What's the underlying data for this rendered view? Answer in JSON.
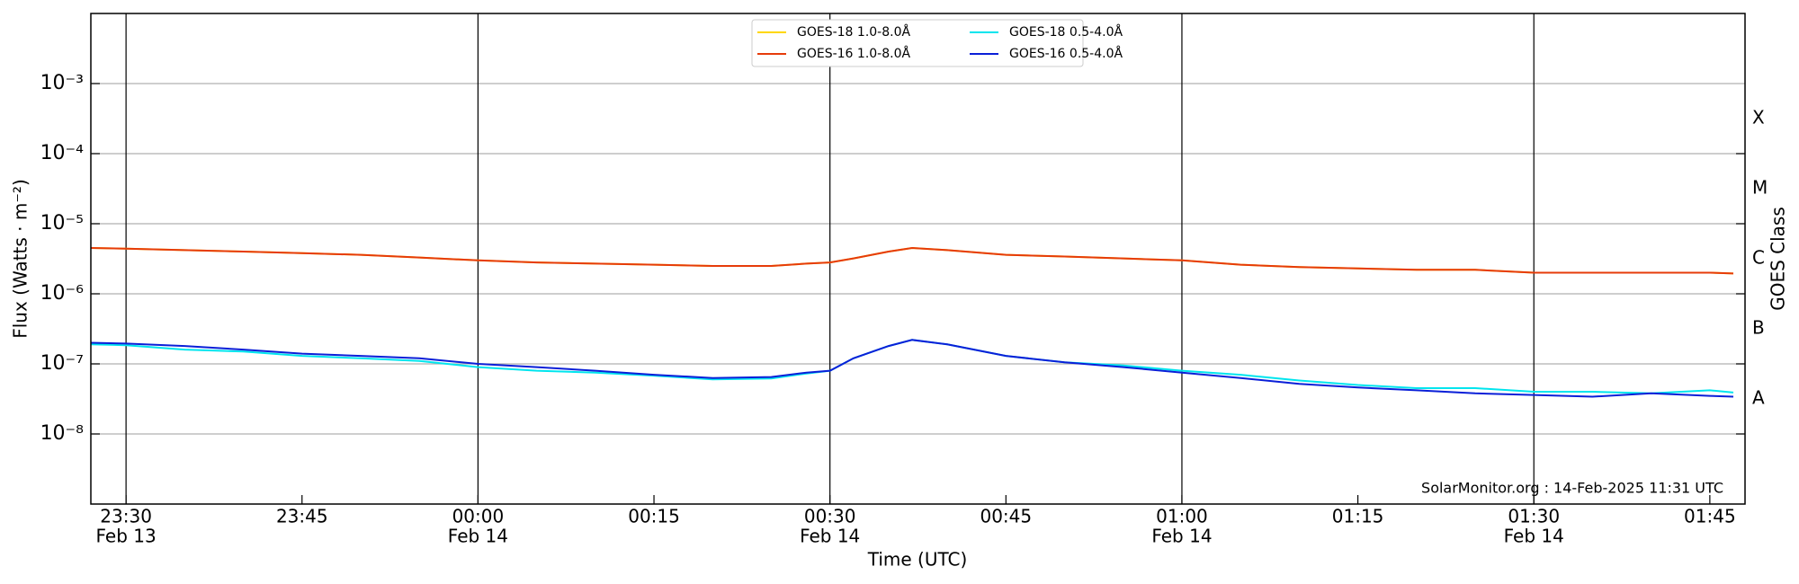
{
  "chart_data": {
    "type": "line",
    "y_label": "Flux (Watts · m⁻²)",
    "y2_label": "GOES Class",
    "x_label": "Time (UTC)",
    "annotation": "SolarMonitor.org : 14-Feb-2025 11:31 UTC",
    "log_y": true,
    "grid": true,
    "legend": "top-center",
    "x": [
      "Feb 13 23:27",
      "Feb 13 23:30",
      "Feb 13 23:35",
      "Feb 13 23:40",
      "Feb 13 23:45",
      "Feb 13 23:50",
      "Feb 13 23:55",
      "Feb 14 00:00",
      "Feb 14 00:05",
      "Feb 14 00:10",
      "Feb 14 00:15",
      "Feb 14 00:20",
      "Feb 14 00:25",
      "Feb 14 00:28",
      "Feb 14 00:30",
      "Feb 14 00:32",
      "Feb 14 00:35",
      "Feb 14 00:37",
      "Feb 14 00:40",
      "Feb 14 00:45",
      "Feb 14 00:50",
      "Feb 14 00:55",
      "Feb 14 01:00",
      "Feb 14 01:05",
      "Feb 14 01:10",
      "Feb 14 01:15",
      "Feb 14 01:20",
      "Feb 14 01:25",
      "Feb 14 01:30",
      "Feb 14 01:35",
      "Feb 14 01:40",
      "Feb 14 01:45",
      "Feb 14 01:47"
    ],
    "xlim": [
      "Feb 13 23:27",
      "Feb 14 01:48"
    ],
    "xticks": [
      {
        "value": "Feb 13 23:30",
        "label": "23:30",
        "date": "Feb 13"
      },
      {
        "value": "Feb 13 23:45",
        "label": "23:45"
      },
      {
        "value": "Feb 14 00:00",
        "label": "00:00",
        "date": "Feb 14"
      },
      {
        "value": "Feb 14 00:15",
        "label": "00:15"
      },
      {
        "value": "Feb 14 00:30",
        "label": "00:30",
        "date": "Feb 14"
      },
      {
        "value": "Feb 14 00:45",
        "label": "00:45"
      },
      {
        "value": "Feb 14 01:00",
        "label": "01:00",
        "date": "Feb 14"
      },
      {
        "value": "Feb 14 01:15",
        "label": "01:15"
      },
      {
        "value": "Feb 14 01:30",
        "label": "01:30",
        "date": "Feb 14"
      },
      {
        "value": "Feb 14 01:45",
        "label": "01:45"
      }
    ],
    "ylim": [
      1e-09,
      0.01
    ],
    "yticks": [
      {
        "value": 1e-08,
        "label": "10⁻⁸"
      },
      {
        "value": 1e-07,
        "label": "10⁻⁷"
      },
      {
        "value": 1e-06,
        "label": "10⁻⁶"
      },
      {
        "value": 1e-05,
        "label": "10⁻⁵"
      },
      {
        "value": 0.0001,
        "label": "10⁻⁴"
      },
      {
        "value": 0.001,
        "label": "10⁻³"
      }
    ],
    "y2lim": [
      1e-09,
      0.01
    ],
    "y2ticks": [
      {
        "value": 1e-08,
        "label": "A"
      },
      {
        "value": 1e-07,
        "label": "B"
      },
      {
        "value": 1e-06,
        "label": "C"
      },
      {
        "value": 1e-05,
        "label": "M"
      },
      {
        "value": 0.0001,
        "label": "X"
      }
    ],
    "series": [
      {
        "name": "GOES-18 1.0-8.0Å",
        "color": "#ffd700",
        "values": [
          4.5e-06,
          4.4e-06,
          4.2e-06,
          4e-06,
          3.8e-06,
          3.6e-06,
          3.3e-06,
          3e-06,
          2.8e-06,
          2.7e-06,
          2.6e-06,
          2.5e-06,
          2.5e-06,
          2.7e-06,
          2.8e-06,
          3.2e-06,
          4e-06,
          4.5e-06,
          4.2e-06,
          3.6e-06,
          3.4e-06,
          3.2e-06,
          3e-06,
          2.6e-06,
          2.4e-06,
          2.3e-06,
          2.2e-06,
          2.2e-06,
          2e-06,
          2e-06,
          2e-06,
          2e-06,
          1.95e-06
        ]
      },
      {
        "name": "GOES-16 1.0-8.0Å",
        "color": "#e63b0a",
        "values": [
          4.5e-06,
          4.4e-06,
          4.2e-06,
          4e-06,
          3.8e-06,
          3.6e-06,
          3.3e-06,
          3e-06,
          2.8e-06,
          2.7e-06,
          2.6e-06,
          2.5e-06,
          2.5e-06,
          2.7e-06,
          2.8e-06,
          3.2e-06,
          4e-06,
          4.5e-06,
          4.2e-06,
          3.6e-06,
          3.4e-06,
          3.2e-06,
          3e-06,
          2.6e-06,
          2.4e-06,
          2.3e-06,
          2.2e-06,
          2.2e-06,
          2e-06,
          2e-06,
          2e-06,
          2e-06,
          1.95e-06
        ]
      },
      {
        "name": "GOES-18 0.5-4.0Å",
        "color": "#00e5ee",
        "values": [
          1.9e-07,
          1.85e-07,
          1.6e-07,
          1.5e-07,
          1.3e-07,
          1.2e-07,
          1.1e-07,
          9e-08,
          8e-08,
          7.5e-08,
          6.8e-08,
          6e-08,
          6.2e-08,
          7.3e-08,
          8e-08,
          1.2e-07,
          1.8e-07,
          2.2e-07,
          1.9e-07,
          1.3e-07,
          1.05e-07,
          9.5e-08,
          8e-08,
          7e-08,
          5.8e-08,
          5e-08,
          4.5e-08,
          4.5e-08,
          4e-08,
          4e-08,
          3.8e-08,
          4.2e-08,
          3.9e-08
        ]
      },
      {
        "name": "GOES-16 0.5-4.0Å",
        "color": "#0a1fd8",
        "values": [
          2e-07,
          1.95e-07,
          1.8e-07,
          1.6e-07,
          1.4e-07,
          1.3e-07,
          1.2e-07,
          1e-07,
          9e-08,
          8e-08,
          7e-08,
          6.3e-08,
          6.5e-08,
          7.5e-08,
          8e-08,
          1.2e-07,
          1.8e-07,
          2.2e-07,
          1.9e-07,
          1.3e-07,
          1.05e-07,
          9e-08,
          7.5e-08,
          6.3e-08,
          5.2e-08,
          4.6e-08,
          4.2e-08,
          3.8e-08,
          3.6e-08,
          3.4e-08,
          3.8e-08,
          3.5e-08,
          3.4e-08
        ]
      }
    ]
  }
}
